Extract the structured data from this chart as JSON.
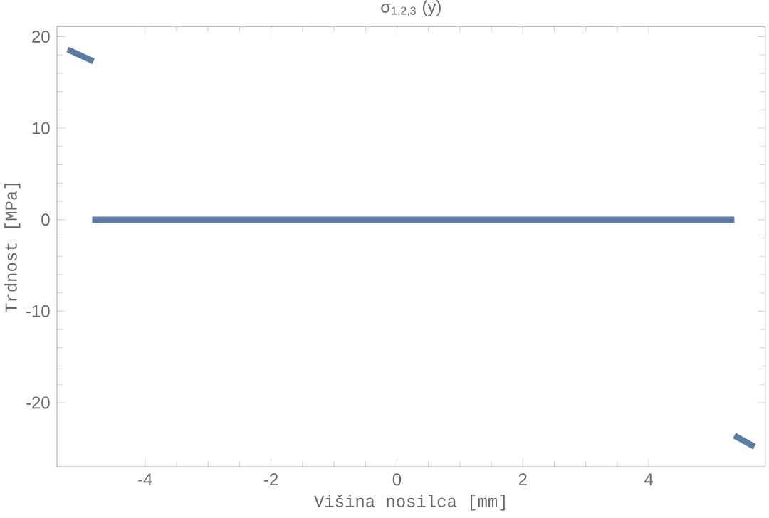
{
  "chart_data": {
    "type": "line",
    "title": "σ$_{1,2,3}$ (y)",
    "xlabel": "Višina nosilca [mm]",
    "ylabel": "Trdnost [MPa]",
    "xlim": [
      -5.4,
      5.85
    ],
    "ylim": [
      -27,
      21.1
    ],
    "xticks": [
      -4,
      -2,
      0,
      2,
      4
    ],
    "yticks": [
      -20,
      -10,
      0,
      10,
      20
    ],
    "grid": false,
    "marker": "none",
    "line_style": "solid",
    "series": [
      {
        "color": "#5b7ca5",
        "x": [
          -5.23,
          -4.82
        ],
        "values": [
          18.6,
          17.3
        ]
      },
      {
        "color": "#5b7ca5",
        "x": [
          -4.84,
          5.36
        ],
        "values": [
          0,
          0
        ]
      },
      {
        "color": "#5b7ca5",
        "x": [
          5.36,
          5.68
        ],
        "values": [
          -23.6,
          -24.8
        ]
      }
    ]
  }
}
